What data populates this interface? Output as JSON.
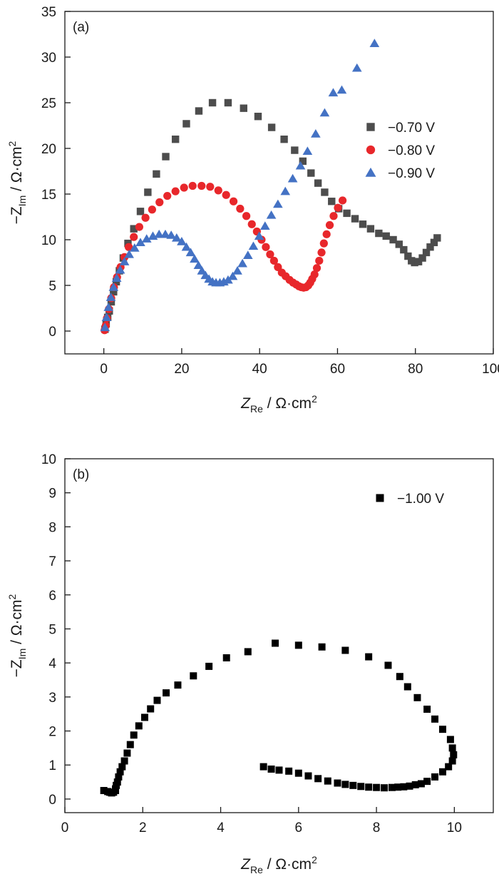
{
  "chart_data": [
    {
      "panel": "(a)",
      "type": "scatter",
      "xlabel": {
        "main": "Z",
        "sub": "Re",
        "unit": " / Ω·cm",
        "sup": "2"
      },
      "ylabel": {
        "prefix": "−Z",
        "sub": "Im",
        "unit": " / Ω·cm",
        "sup": "2"
      },
      "xlim": [
        -10,
        100
      ],
      "ylim": [
        -2.5,
        35
      ],
      "xticks": [
        0,
        20,
        40,
        60,
        80,
        100
      ],
      "yticks": [
        0,
        5,
        10,
        15,
        20,
        25,
        30,
        35
      ],
      "legend_position": "right",
      "series": [
        {
          "name": "−0.70 V",
          "marker": "square",
          "color": "#4d4d4d",
          "points": [
            [
              0.3,
              0.2
            ],
            [
              0.6,
              0.8
            ],
            [
              1.0,
              1.5
            ],
            [
              1.4,
              2.2
            ],
            [
              1.9,
              3.2
            ],
            [
              2.5,
              4.3
            ],
            [
              3.2,
              5.4
            ],
            [
              4.0,
              6.6
            ],
            [
              5.0,
              8.0
            ],
            [
              6.2,
              9.6
            ],
            [
              7.7,
              11.2
            ],
            [
              9.4,
              13.1
            ],
            [
              11.3,
              15.2
            ],
            [
              13.5,
              17.2
            ],
            [
              15.9,
              19.1
            ],
            [
              18.4,
              21.0
            ],
            [
              21.2,
              22.7
            ],
            [
              24.4,
              24.1
            ],
            [
              27.9,
              25.0
            ],
            [
              31.9,
              25.0
            ],
            [
              35.9,
              24.4
            ],
            [
              39.6,
              23.5
            ],
            [
              43.1,
              22.3
            ],
            [
              46.3,
              21.0
            ],
            [
              49.0,
              19.8
            ],
            [
              51.1,
              18.6
            ],
            [
              53.2,
              17.3
            ],
            [
              55.0,
              16.2
            ],
            [
              56.7,
              15.2
            ],
            [
              58.5,
              14.2
            ],
            [
              60.3,
              13.4
            ],
            [
              62.4,
              12.9
            ],
            [
              64.5,
              12.3
            ],
            [
              66.5,
              11.7
            ],
            [
              68.5,
              11.2
            ],
            [
              70.6,
              10.7
            ],
            [
              72.5,
              10.4
            ],
            [
              74.3,
              10.0
            ],
            [
              75.8,
              9.5
            ],
            [
              77.0,
              8.9
            ],
            [
              78.1,
              8.2
            ],
            [
              79.0,
              7.7
            ],
            [
              79.8,
              7.5
            ],
            [
              80.8,
              7.6
            ],
            [
              81.8,
              8.0
            ],
            [
              82.8,
              8.6
            ],
            [
              83.8,
              9.2
            ],
            [
              84.8,
              9.7
            ],
            [
              85.6,
              10.2
            ]
          ]
        },
        {
          "name": "−0.80 V",
          "marker": "circle",
          "color": "#e8272b",
          "points": [
            [
              0.2,
              0.1
            ],
            [
              0.5,
              0.6
            ],
            [
              0.8,
              1.4
            ],
            [
              1.3,
              2.4
            ],
            [
              1.9,
              3.6
            ],
            [
              2.6,
              4.8
            ],
            [
              3.4,
              5.9
            ],
            [
              4.3,
              7.0
            ],
            [
              5.3,
              8.1
            ],
            [
              6.4,
              9.2
            ],
            [
              7.7,
              10.3
            ],
            [
              9.1,
              11.4
            ],
            [
              10.7,
              12.4
            ],
            [
              12.4,
              13.3
            ],
            [
              14.3,
              14.1
            ],
            [
              16.3,
              14.8
            ],
            [
              18.4,
              15.3
            ],
            [
              20.6,
              15.7
            ],
            [
              22.8,
              15.9
            ],
            [
              25.1,
              15.9
            ],
            [
              27.3,
              15.8
            ],
            [
              29.4,
              15.4
            ],
            [
              31.4,
              14.9
            ],
            [
              33.3,
              14.2
            ],
            [
              35.0,
              13.4
            ],
            [
              36.6,
              12.6
            ],
            [
              38.0,
              11.7
            ],
            [
              39.3,
              10.9
            ],
            [
              40.5,
              10.0
            ],
            [
              41.6,
              9.2
            ],
            [
              42.7,
              8.4
            ],
            [
              43.7,
              7.7
            ],
            [
              44.7,
              7.0
            ],
            [
              45.7,
              6.4
            ],
            [
              46.7,
              6.0
            ],
            [
              47.7,
              5.6
            ],
            [
              48.6,
              5.3
            ],
            [
              49.4,
              5.1
            ],
            [
              50.1,
              4.9
            ],
            [
              50.7,
              4.8
            ],
            [
              51.3,
              4.75
            ],
            [
              51.9,
              4.8
            ],
            [
              52.5,
              5.0
            ],
            [
              53.0,
              5.3
            ],
            [
              53.5,
              5.7
            ],
            [
              54.1,
              6.2
            ],
            [
              54.7,
              6.9
            ],
            [
              55.3,
              7.7
            ],
            [
              55.9,
              8.6
            ],
            [
              56.5,
              9.6
            ],
            [
              57.2,
              10.6
            ],
            [
              58.0,
              11.6
            ],
            [
              59.0,
              12.6
            ],
            [
              60.1,
              13.5
            ],
            [
              61.3,
              14.3
            ]
          ]
        },
        {
          "name": "−0.90 V",
          "marker": "triangle",
          "color": "#4472c4",
          "points": [
            [
              0.3,
              0.4
            ],
            [
              0.7,
              1.5
            ],
            [
              1.2,
              2.6
            ],
            [
              1.8,
              3.7
            ],
            [
              2.5,
              4.8
            ],
            [
              3.3,
              5.8
            ],
            [
              4.2,
              6.7
            ],
            [
              5.3,
              7.6
            ],
            [
              6.5,
              8.4
            ],
            [
              7.9,
              9.1
            ],
            [
              9.4,
              9.7
            ],
            [
              11.0,
              10.1
            ],
            [
              12.6,
              10.4
            ],
            [
              14.2,
              10.6
            ],
            [
              15.8,
              10.6
            ],
            [
              17.3,
              10.5
            ],
            [
              18.7,
              10.2
            ],
            [
              20.0,
              9.8
            ],
            [
              21.2,
              9.2
            ],
            [
              22.3,
              8.6
            ],
            [
              23.3,
              7.9
            ],
            [
              24.3,
              7.2
            ],
            [
              25.2,
              6.6
            ],
            [
              26.1,
              6.1
            ],
            [
              27.0,
              5.7
            ],
            [
              27.9,
              5.4
            ],
            [
              28.8,
              5.3
            ],
            [
              29.8,
              5.3
            ],
            [
              30.8,
              5.4
            ],
            [
              31.9,
              5.6
            ],
            [
              33.1,
              6.0
            ],
            [
              34.3,
              6.6
            ],
            [
              35.6,
              7.4
            ],
            [
              37.0,
              8.3
            ],
            [
              38.4,
              9.3
            ],
            [
              39.9,
              10.4
            ],
            [
              41.4,
              11.5
            ],
            [
              43.0,
              12.7
            ],
            [
              44.7,
              13.9
            ],
            [
              46.6,
              15.3
            ],
            [
              48.5,
              16.7
            ],
            [
              50.5,
              18.1
            ],
            [
              52.3,
              19.7
            ],
            [
              54.4,
              21.6
            ],
            [
              56.7,
              23.9
            ],
            [
              58.9,
              26.1
            ],
            [
              61.1,
              26.4
            ],
            [
              65.0,
              28.8
            ],
            [
              69.5,
              31.5
            ]
          ]
        }
      ]
    },
    {
      "panel": "(b)",
      "type": "scatter",
      "xlabel": {
        "main": "Z",
        "sub": "Re",
        "unit": " / Ω·cm",
        "sup": "2"
      },
      "ylabel": {
        "prefix": "−Z",
        "sub": "Im",
        "unit": " / Ω·cm",
        "sup": "2"
      },
      "xlim": [
        0,
        11
      ],
      "ylim": [
        -0.4,
        10
      ],
      "xticks": [
        0,
        2,
        4,
        6,
        8,
        10
      ],
      "yticks": [
        0,
        1,
        2,
        3,
        4,
        5,
        6,
        7,
        8,
        9,
        10
      ],
      "legend_position": "top-right",
      "series": [
        {
          "name": "−1.00 V",
          "marker": "square",
          "color": "#000000",
          "points": [
            [
              1.0,
              0.25
            ],
            [
              1.1,
              0.22
            ],
            [
              1.15,
              0.2
            ],
            [
              1.2,
              0.18
            ],
            [
              1.25,
              0.2
            ],
            [
              1.3,
              0.25
            ],
            [
              1.3,
              0.3
            ],
            [
              1.32,
              0.4
            ],
            [
              1.35,
              0.5
            ],
            [
              1.38,
              0.65
            ],
            [
              1.42,
              0.8
            ],
            [
              1.47,
              0.95
            ],
            [
              1.53,
              1.12
            ],
            [
              1.6,
              1.35
            ],
            [
              1.68,
              1.6
            ],
            [
              1.77,
              1.88
            ],
            [
              1.9,
              2.15
            ],
            [
              2.05,
              2.4
            ],
            [
              2.2,
              2.65
            ],
            [
              2.37,
              2.9
            ],
            [
              2.6,
              3.12
            ],
            [
              2.9,
              3.35
            ],
            [
              3.3,
              3.62
            ],
            [
              3.7,
              3.9
            ],
            [
              4.15,
              4.15
            ],
            [
              4.7,
              4.33
            ],
            [
              5.4,
              4.58
            ],
            [
              6.0,
              4.52
            ],
            [
              6.6,
              4.47
            ],
            [
              7.2,
              4.37
            ],
            [
              7.8,
              4.18
            ],
            [
              8.3,
              3.93
            ],
            [
              8.6,
              3.6
            ],
            [
              8.8,
              3.3
            ],
            [
              9.05,
              2.98
            ],
            [
              9.3,
              2.64
            ],
            [
              9.5,
              2.35
            ],
            [
              9.7,
              2.05
            ],
            [
              9.9,
              1.75
            ],
            [
              9.95,
              1.5
            ],
            [
              9.98,
              1.3
            ],
            [
              9.95,
              1.12
            ],
            [
              9.85,
              0.95
            ],
            [
              9.7,
              0.8
            ],
            [
              9.5,
              0.65
            ],
            [
              9.3,
              0.52
            ],
            [
              9.15,
              0.45
            ],
            [
              9.0,
              0.42
            ],
            [
              8.85,
              0.38
            ],
            [
              8.7,
              0.36
            ],
            [
              8.55,
              0.35
            ],
            [
              8.4,
              0.34
            ],
            [
              8.2,
              0.33
            ],
            [
              8.0,
              0.34
            ],
            [
              7.8,
              0.35
            ],
            [
              7.6,
              0.37
            ],
            [
              7.4,
              0.4
            ],
            [
              7.2,
              0.43
            ],
            [
              7.0,
              0.47
            ],
            [
              6.75,
              0.53
            ],
            [
              6.5,
              0.6
            ],
            [
              6.25,
              0.68
            ],
            [
              6.0,
              0.76
            ],
            [
              5.75,
              0.82
            ],
            [
              5.5,
              0.85
            ],
            [
              5.3,
              0.88
            ],
            [
              5.1,
              0.95
            ]
          ]
        }
      ]
    }
  ]
}
